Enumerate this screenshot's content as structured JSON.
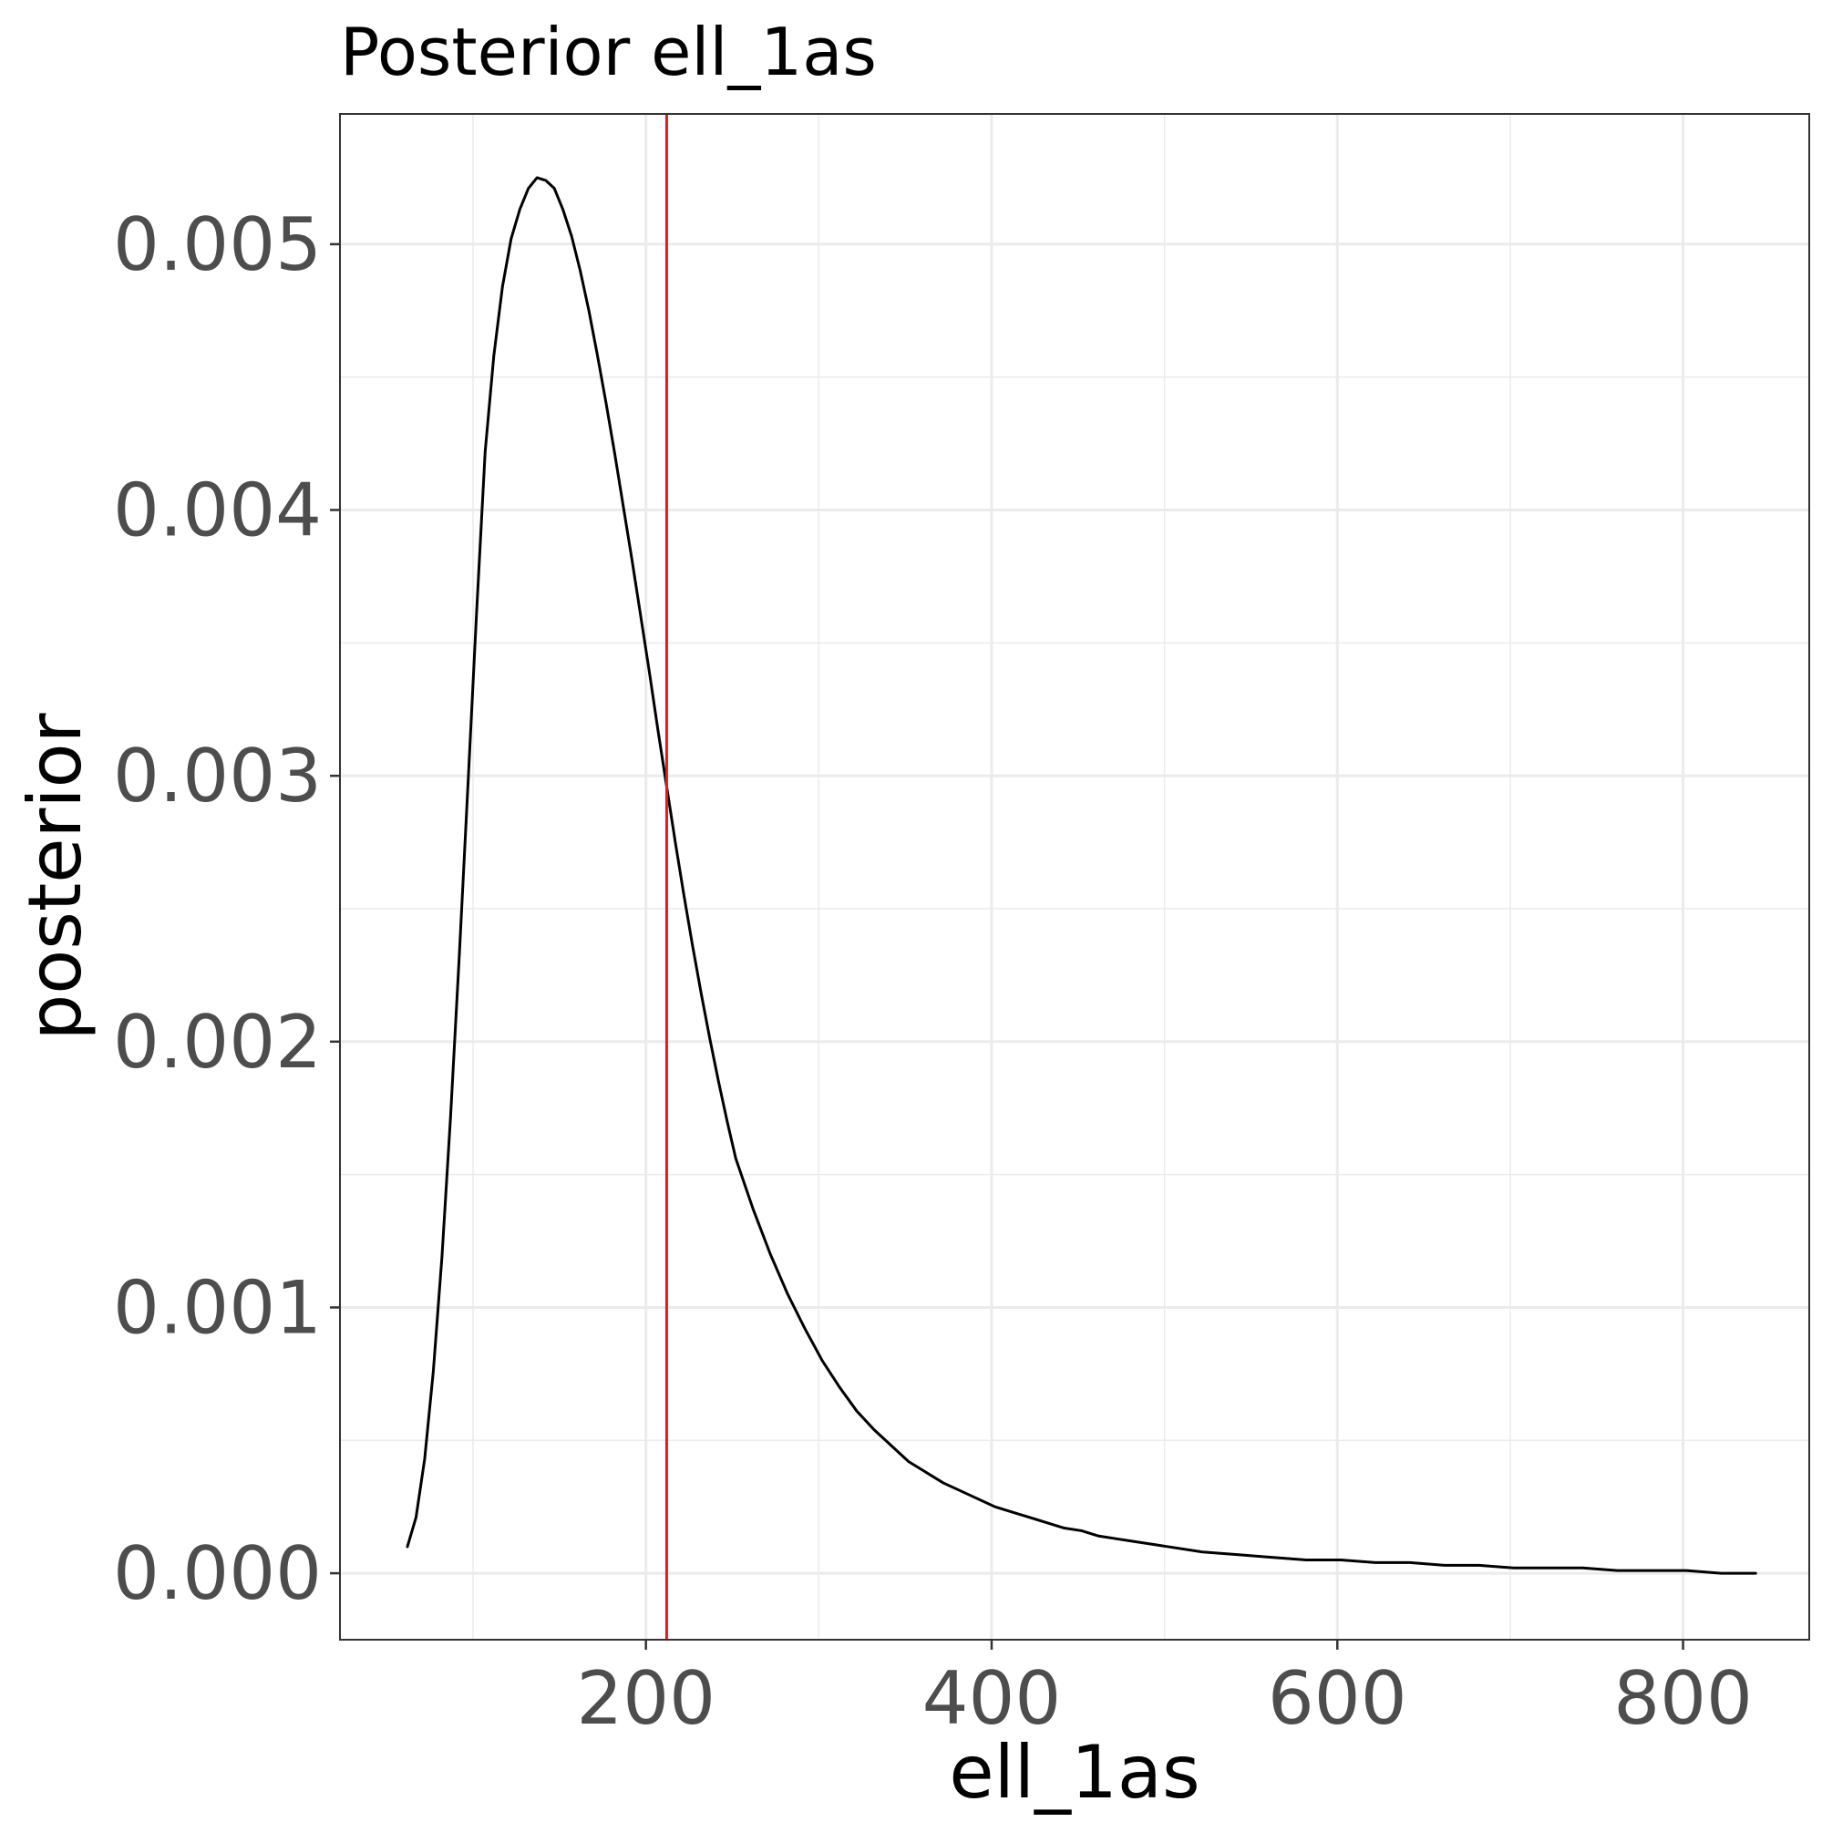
{
  "chart_data": {
    "type": "line",
    "title": "Posterior ell_1as",
    "xlabel": "ell_1as",
    "ylabel": "posterior",
    "xlim": [
      23,
      873
    ],
    "ylim": [
      -0.00025,
      0.00549
    ],
    "x_ticks": [
      200,
      400,
      600,
      800
    ],
    "x_tick_labels": [
      "200",
      "400",
      "600",
      "800"
    ],
    "x_minor_ticks": [
      100,
      300,
      500,
      700
    ],
    "y_ticks": [
      0.0,
      0.001,
      0.002,
      0.003,
      0.004,
      0.005
    ],
    "y_tick_labels": [
      "0.000",
      "0.001",
      "0.002",
      "0.003",
      "0.004",
      "0.005"
    ],
    "y_minor_ticks": [
      0.0005,
      0.0015,
      0.0025,
      0.0035,
      0.0045
    ],
    "grid": true,
    "theme": "bw",
    "series": [
      {
        "color": "#000000",
        "x": [
          62,
          67,
          72,
          77,
          82,
          87,
          92,
          97,
          102,
          107,
          112,
          117,
          122,
          127,
          132,
          137,
          142,
          147,
          152,
          157,
          162,
          167,
          172,
          177,
          182,
          187,
          192,
          197,
          202,
          207,
          212,
          217,
          222,
          227,
          232,
          237,
          242,
          247,
          252,
          262,
          272,
          282,
          292,
          302,
          312,
          322,
          332,
          342,
          352,
          362,
          372,
          382,
          392,
          402,
          412,
          422,
          432,
          442,
          452,
          462,
          472,
          482,
          492,
          502,
          522,
          542,
          562,
          582,
          602,
          622,
          642,
          662,
          682,
          702,
          722,
          742,
          762,
          782,
          802,
          822,
          842
        ],
        "y": [
          0.0001,
          0.00021,
          0.00043,
          0.00076,
          0.00119,
          0.00172,
          0.00232,
          0.00296,
          0.00361,
          0.00422,
          0.00458,
          0.00484,
          0.00502,
          0.00513,
          0.00521,
          0.00525,
          0.00524,
          0.00521,
          0.00513,
          0.00503,
          0.0049,
          0.00475,
          0.00458,
          0.0044,
          0.00421,
          0.00401,
          0.00381,
          0.0036,
          0.00339,
          0.00317,
          0.00296,
          0.00275,
          0.00255,
          0.00236,
          0.00218,
          0.00201,
          0.00185,
          0.0017,
          0.00156,
          0.00137,
          0.0012,
          0.00105,
          0.00092,
          0.0008,
          0.0007,
          0.00061,
          0.00054,
          0.00048,
          0.00042,
          0.00038,
          0.00034,
          0.00031,
          0.00028,
          0.00025,
          0.00023,
          0.00021,
          0.00019,
          0.00017,
          0.00016,
          0.00014,
          0.00013,
          0.00012,
          0.00011,
          0.0001,
          8e-05,
          7e-05,
          6e-05,
          5e-05,
          5e-05,
          4e-05,
          4e-05,
          3e-05,
          3e-05,
          2e-05,
          2e-05,
          2e-05,
          1e-05,
          1e-05,
          1e-05,
          0.0,
          0.0
        ]
      }
    ],
    "vline": {
      "x": 212,
      "color": "#e31a1c"
    }
  }
}
